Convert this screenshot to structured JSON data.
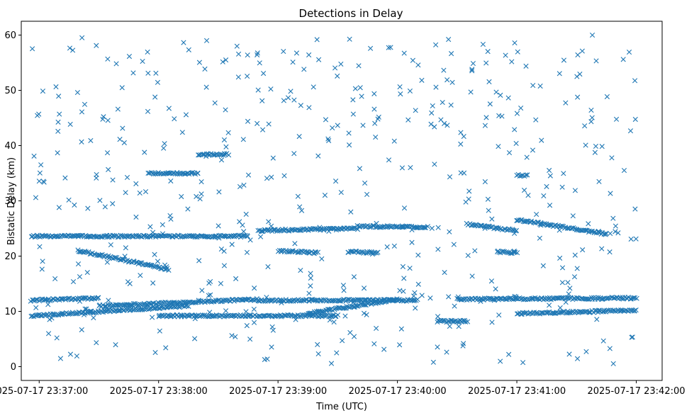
{
  "chart_data": {
    "type": "scatter",
    "title": "Detections in Delay",
    "xlabel": "Time (UTC)",
    "ylabel": "Bistatic Delay (km)",
    "marker": "x",
    "color": "#1f77b4",
    "grid": false,
    "xlim": [
      "2025-07-17 23:36:51",
      "2025-07-17 23:42:13"
    ],
    "ylim": [
      -2.5,
      62.5
    ],
    "x_ticks": [
      "2025-07-17 23:37:00",
      "2025-07-17 23:38:00",
      "2025-07-17 23:39:00",
      "2025-07-17 23:40:00",
      "2025-07-17 23:41:00",
      "2025-07-17 23:42:00"
    ],
    "y_ticks": [
      0,
      10,
      20,
      30,
      40,
      50,
      60
    ],
    "tracks": [
      {
        "x_start": "2025-07-17 23:36:56",
        "x_end": "2025-07-17 23:37:30",
        "y_start": 12.0,
        "y_end": 12.4
      },
      {
        "x_start": "2025-07-17 23:37:30",
        "x_end": "2025-07-17 23:38:50",
        "y_start": 11.0,
        "y_end": 12.2
      },
      {
        "x_start": "2025-07-17 23:38:50",
        "x_end": "2025-07-17 23:40:10",
        "y_start": 12.0,
        "y_end": 12.0
      },
      {
        "x_start": "2025-07-17 23:40:30",
        "x_end": "2025-07-17 23:42:00",
        "y_start": 12.2,
        "y_end": 12.4
      },
      {
        "x_start": "2025-07-17 23:36:56",
        "x_end": "2025-07-17 23:38:15",
        "y_start": 9.2,
        "y_end": 11.0
      },
      {
        "x_start": "2025-07-17 23:38:00",
        "x_end": "2025-07-17 23:39:30",
        "y_start": 9.2,
        "y_end": 9.2
      },
      {
        "x_start": "2025-07-17 23:39:15",
        "x_end": "2025-07-17 23:40:00",
        "y_start": 9.6,
        "y_end": 12.2
      },
      {
        "x_start": "2025-07-17 23:40:20",
        "x_end": "2025-07-17 23:40:35",
        "y_start": 8.2,
        "y_end": 8.2
      },
      {
        "x_start": "2025-07-17 23:41:00",
        "x_end": "2025-07-17 23:42:00",
        "y_start": 9.6,
        "y_end": 10.2
      },
      {
        "x_start": "2025-07-17 23:36:56",
        "x_end": "2025-07-17 23:38:45",
        "y_start": 23.6,
        "y_end": 23.6
      },
      {
        "x_start": "2025-07-17 23:38:50",
        "x_end": "2025-07-17 23:39:40",
        "y_start": 24.6,
        "y_end": 25.0
      },
      {
        "x_start": "2025-07-17 23:39:40",
        "x_end": "2025-07-17 23:40:15",
        "y_start": 25.4,
        "y_end": 25.2
      },
      {
        "x_start": "2025-07-17 23:40:35",
        "x_end": "2025-07-17 23:41:00",
        "y_start": 25.8,
        "y_end": 24.6
      },
      {
        "x_start": "2025-07-17 23:41:00",
        "x_end": "2025-07-17 23:41:45",
        "y_start": 26.6,
        "y_end": 24.0
      },
      {
        "x_start": "2025-07-17 23:37:20",
        "x_end": "2025-07-17 23:38:05",
        "y_start": 21.0,
        "y_end": 17.6
      },
      {
        "x_start": "2025-07-17 23:39:00",
        "x_end": "2025-07-17 23:39:20",
        "y_start": 21.0,
        "y_end": 20.6
      },
      {
        "x_start": "2025-07-17 23:39:35",
        "x_end": "2025-07-17 23:39:50",
        "y_start": 20.8,
        "y_end": 20.6
      },
      {
        "x_start": "2025-07-17 23:40:50",
        "x_end": "2025-07-17 23:41:00",
        "y_start": 20.8,
        "y_end": 20.6
      },
      {
        "x_start": "2025-07-17 23:38:20",
        "x_end": "2025-07-17 23:38:35",
        "y_start": 38.4,
        "y_end": 38.4
      },
      {
        "x_start": "2025-07-17 23:37:55",
        "x_end": "2025-07-17 23:38:20",
        "y_start": 35.0,
        "y_end": 35.0
      },
      {
        "x_start": "2025-07-17 23:41:00",
        "x_end": "2025-07-17 23:41:05",
        "y_start": 34.6,
        "y_end": 34.6
      }
    ],
    "scatter": {
      "count": 520,
      "x_range": [
        "2025-07-17 23:36:56",
        "2025-07-17 23:42:00"
      ],
      "y_range": [
        0.5,
        60.0
      ]
    }
  }
}
